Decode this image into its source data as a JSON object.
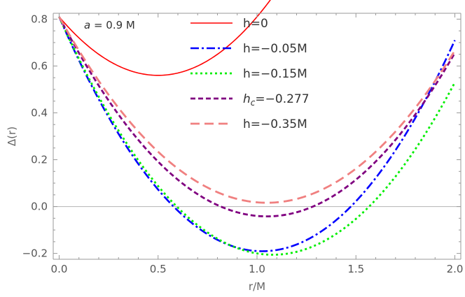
{
  "chart_data": {
    "type": "line",
    "title": "",
    "xlabel": "r/M",
    "ylabel": "Δ(r)",
    "xlim": [
      -0.03,
      2.03
    ],
    "ylim": [
      -0.225,
      0.825
    ],
    "xticks": [
      {
        "value": 0.0,
        "label": "0.0"
      },
      {
        "value": 0.5,
        "label": "0.5"
      },
      {
        "value": 1.0,
        "label": "1.0"
      },
      {
        "value": 1.5,
        "label": "1.5"
      },
      {
        "value": 2.0,
        "label": "2.0"
      }
    ],
    "yticks": [
      {
        "value": -0.2,
        "label": "−0.2"
      },
      {
        "value": 0.0,
        "label": "0.0"
      },
      {
        "value": 0.2,
        "label": "0.2"
      },
      {
        "value": 0.4,
        "label": "0.4"
      },
      {
        "value": 0.6,
        "label": "0.6"
      },
      {
        "value": 0.8,
        "label": "0.8"
      }
    ],
    "annotation": {
      "prefix": "a",
      "text": " = 0.9 M"
    },
    "x_range": [
      0.0,
      2.0
    ],
    "series": [
      {
        "name": "h=0",
        "legend_main": "h=0",
        "legend_sub": "",
        "legend_rest": "",
        "legend_italic": false,
        "color": "#ff0000",
        "dash": "",
        "width": 1.6,
        "a": 1.0,
        "b": 1.0,
        "c": 0.81
      },
      {
        "name": "h=−0.05M",
        "legend_main": "h=−0.05M",
        "legend_sub": "",
        "legend_rest": "",
        "legend_italic": false,
        "color": "#0000ff",
        "dash": "12 4 3 4",
        "width": 2.6,
        "a": 0.95,
        "b": 1.95,
        "c": 0.81
      },
      {
        "name": "h=−0.15M",
        "legend_main": "h=−0.15M",
        "legend_sub": "",
        "legend_rest": "",
        "legend_italic": false,
        "color": "#00ee00",
        "dash": "3 4",
        "width": 2.8,
        "a": 0.87,
        "b": 1.88,
        "c": 0.81
      },
      {
        "name": "hc=−0.277",
        "legend_main": "h",
        "legend_sub": "c",
        "legend_rest": "=−0.277",
        "legend_italic": true,
        "color": "#800080",
        "dash": "7 4",
        "width": 2.8,
        "a": 0.773,
        "b": 1.623,
        "c": 0.81
      },
      {
        "name": "h=−0.35M",
        "legend_main": "h=−0.35M",
        "legend_sub": "",
        "legend_rest": "",
        "legend_italic": false,
        "color": "#f08080",
        "dash": "13 7",
        "width": 2.8,
        "a": 0.72,
        "b": 1.512,
        "c": 0.81
      }
    ]
  }
}
